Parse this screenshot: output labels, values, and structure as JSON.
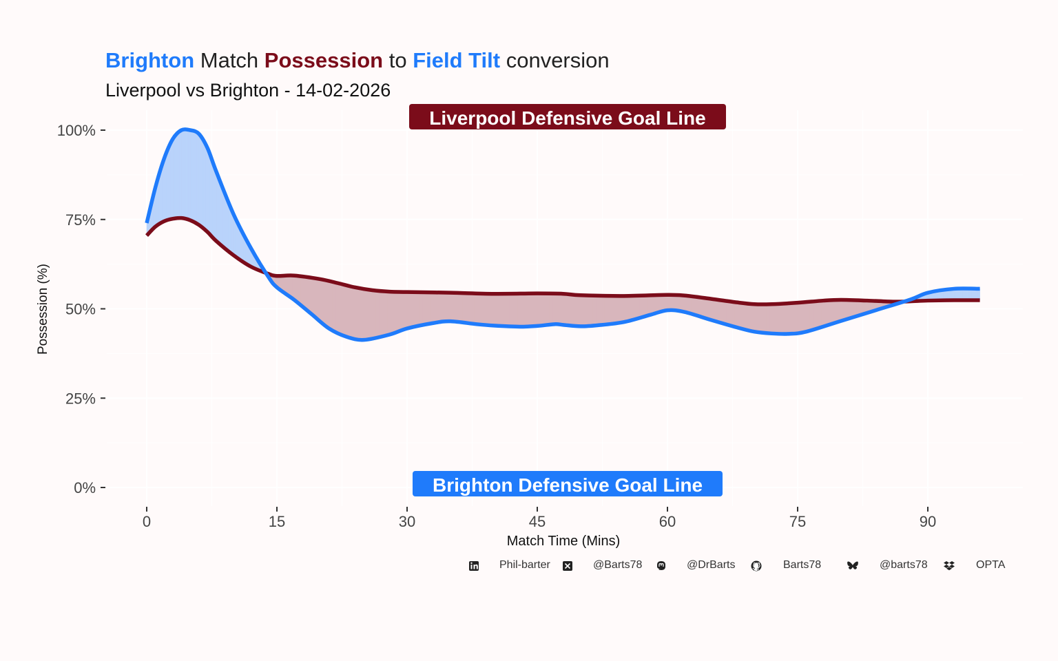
{
  "title": {
    "part1": "Brighton",
    "part2": " Match ",
    "part3": "Possession",
    "part4": " to ",
    "part5": "Field Tilt",
    "part6": " conversion"
  },
  "subtitle": "Liverpool vs Brighton - 14-02-2026",
  "colors": {
    "brighton": "#1f7bfb",
    "liverpool": "#7b0c1a",
    "brighton_fill": "#b9d3fb",
    "liverpool_fill": "#d8b6bc",
    "background": "#fffafa",
    "grid": "#ffffff"
  },
  "chart_data": {
    "type": "line",
    "xlabel": "Match Time (Mins)",
    "ylabel": "Possession (%)",
    "xlim": [
      -3,
      98.5
    ],
    "ylim": [
      -5,
      105
    ],
    "x_ticks": [
      0,
      15,
      30,
      45,
      60,
      75,
      90
    ],
    "y_ticks": [
      0,
      25,
      50,
      75,
      100
    ],
    "y_tick_labels": [
      "0%",
      "25%",
      "50%",
      "75%",
      "100%"
    ],
    "grid": true,
    "annotations": {
      "top": "Liverpool  Defensive Goal Line",
      "bottom": "Brighton  Defensive Goal Line"
    },
    "series": [
      {
        "name": "Possession",
        "color": "#7b0c1a",
        "x": [
          0,
          1,
          2,
          3,
          4,
          5,
          6,
          7,
          8,
          10,
          12,
          14,
          15,
          17,
          20,
          22,
          24,
          26,
          28,
          30,
          35,
          40,
          45,
          48,
          50,
          55,
          60,
          62,
          65,
          68,
          70,
          72,
          75,
          78,
          80,
          83,
          86,
          88,
          90,
          93,
          96
        ],
        "values": [
          70.5,
          73,
          74.5,
          75.2,
          75.4,
          74.8,
          73.5,
          71.5,
          69,
          65,
          61.8,
          59.8,
          59.2,
          59.3,
          58.3,
          57.2,
          56,
          55.2,
          54.8,
          54.7,
          54.5,
          54.2,
          54.3,
          54.2,
          53.8,
          53.6,
          53.9,
          53.7,
          52.8,
          51.8,
          51.3,
          51.3,
          51.7,
          52.3,
          52.5,
          52.3,
          52,
          52.1,
          52.3,
          52.4,
          52.4
        ]
      },
      {
        "name": "Field Tilt",
        "color": "#1f7bfb",
        "x": [
          0,
          1,
          2,
          3,
          4,
          5,
          6,
          7,
          8,
          10,
          12,
          14,
          15,
          17,
          19,
          21,
          23,
          25,
          28,
          30,
          33,
          35,
          38,
          40,
          43,
          45,
          47,
          48,
          50,
          52,
          55,
          58,
          60,
          62,
          65,
          68,
          70,
          72,
          74,
          76,
          80,
          84,
          88,
          90,
          93,
          96
        ],
        "values": [
          74,
          84,
          92,
          97.5,
          100,
          100,
          99,
          95,
          88.5,
          76.5,
          67,
          59,
          56,
          52.5,
          48.5,
          44.5,
          42.2,
          41.3,
          42.8,
          44.5,
          46,
          46.5,
          45.7,
          45.3,
          45,
          45.2,
          45.7,
          45.5,
          45.1,
          45.4,
          46.3,
          48.3,
          49.6,
          49.1,
          46.9,
          44.8,
          43.6,
          43.1,
          43,
          43.6,
          46.6,
          49.6,
          52.6,
          54.5,
          55.6,
          55.6
        ]
      }
    ]
  },
  "caption": {
    "linkedin": "Phil-barter",
    "x": "@Barts78",
    "mastodon": "@DrBarts",
    "github": "Barts78",
    "bluesky": "@barts78",
    "source": "OPTA"
  }
}
